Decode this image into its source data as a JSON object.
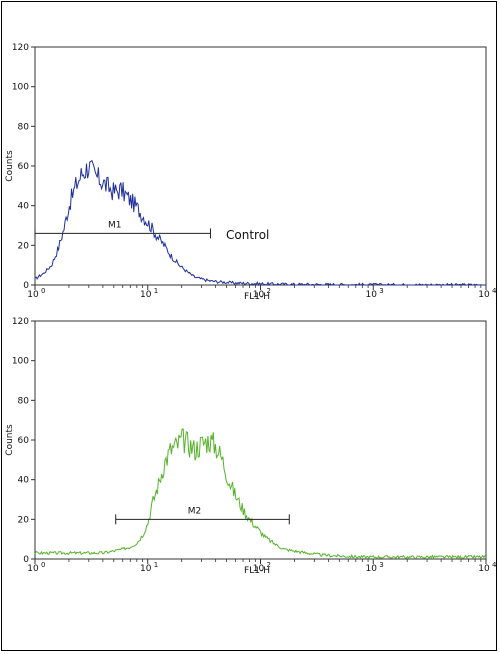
{
  "chart_data": [
    {
      "type": "line",
      "xlabel": "FL1-H",
      "ylabel": "Counts",
      "x_scale": "log",
      "xlim": [
        1,
        10000
      ],
      "ylim": [
        0,
        120
      ],
      "x_tick_labels": [
        "10",
        "0",
        "10",
        "1",
        "10",
        "2",
        "10",
        "3",
        "10",
        "4"
      ],
      "y_ticks": [
        "0",
        "20",
        "40",
        "60",
        "80",
        "100",
        "120"
      ],
      "series": [
        {
          "color": "#1f2f9c",
          "x": [
            1.0,
            1.2,
            1.4,
            1.6,
            1.8,
            2.0,
            2.3,
            2.6,
            3.0,
            3.4,
            3.8,
            4.3,
            5.0,
            5.8,
            6.7,
            7.8,
            9.0,
            10.5,
            12.0,
            14.0,
            16.0,
            19.0,
            22.0,
            26.0,
            30.0,
            36.0,
            45.0,
            60.0,
            80.0,
            120.0,
            200.0,
            400.0,
            1000.0,
            10000.0
          ],
          "values": [
            3,
            6,
            10,
            18,
            28,
            40,
            50,
            56,
            60,
            55,
            53,
            50,
            47,
            48,
            44,
            40,
            35,
            30,
            25,
            20,
            15,
            10,
            7,
            4,
            3,
            2,
            1.5,
            1,
            0.8,
            0.5,
            0.3,
            0.2,
            0.1,
            0
          ]
        }
      ],
      "markers": [
        {
          "label": "M1",
          "x_start": 1.0,
          "x_end": 36.0,
          "y": 26
        }
      ],
      "annotations": [
        "Control"
      ]
    },
    {
      "type": "line",
      "xlabel": "FL1-H",
      "ylabel": "Counts",
      "x_scale": "log",
      "xlim": [
        1,
        10000
      ],
      "ylim": [
        0,
        120
      ],
      "x_tick_labels": [
        "10",
        "0",
        "10",
        "1",
        "10",
        "2",
        "10",
        "3",
        "10",
        "4"
      ],
      "y_ticks": [
        "0",
        "20",
        "40",
        "60",
        "80",
        "100",
        "120"
      ],
      "series": [
        {
          "color": "#55b32a",
          "x": [
            1.0,
            1.5,
            2.0,
            3.0,
            4.0,
            5.0,
            6.0,
            7.0,
            8.0,
            9.0,
            10.0,
            11.0,
            12.5,
            14.0,
            16.0,
            18.0,
            20.0,
            23.0,
            26.0,
            30.0,
            35.0,
            40.0,
            46.0,
            52.0,
            60.0,
            70.0,
            80.0,
            95.0,
            110.0,
            130.0,
            160.0,
            200.0,
            260.0,
            350.0,
            500.0,
            800.0,
            1500.0,
            3000.0,
            10000.0
          ],
          "values": [
            3,
            3,
            3,
            3,
            3,
            4,
            5,
            6,
            8,
            12,
            18,
            28,
            38,
            48,
            55,
            57,
            60,
            58,
            55,
            58,
            60,
            57,
            50,
            40,
            32,
            25,
            20,
            15,
            11,
            8,
            5,
            4,
            3,
            2,
            1.5,
            1,
            1,
            1,
            1
          ]
        }
      ],
      "markers": [
        {
          "label": "M2",
          "x_start": 5.2,
          "x_end": 180.0,
          "y": 20
        }
      ]
    }
  ]
}
